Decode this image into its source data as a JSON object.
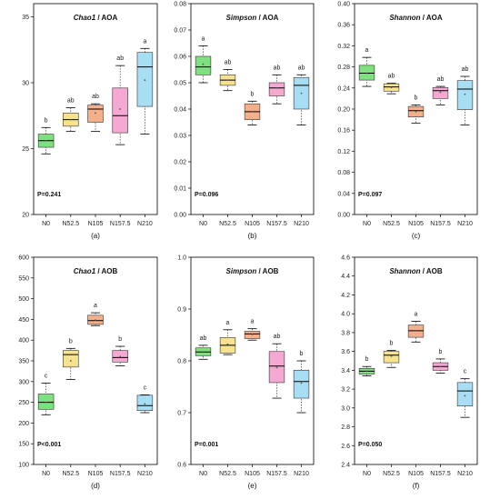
{
  "chart_data": [
    {
      "type": "box",
      "panel_label": "(a)",
      "title_italic": "Chao1",
      "title_rest": " / AOA",
      "ylim": [
        20,
        36
      ],
      "yticks": [
        20,
        25,
        30,
        35
      ],
      "categories": [
        "N0",
        "N52.5",
        "N105",
        "N157.5",
        "N210"
      ],
      "colors": [
        "#7fe07f",
        "#f7e38f",
        "#f4b08a",
        "#f4a8d2",
        "#a8def3"
      ],
      "boxes": [
        {
          "whislo": 24.6,
          "q1": 25.1,
          "med": 25.6,
          "q3": 26.1,
          "whishi": 26.6,
          "mean": 25.6,
          "letter": "b"
        },
        {
          "whislo": 26.3,
          "q1": 26.7,
          "med": 27.2,
          "q3": 27.7,
          "whishi": 28.1,
          "mean": 27.2,
          "letter": "ab"
        },
        {
          "whislo": 26.3,
          "q1": 27.0,
          "med": 28.0,
          "q3": 28.3,
          "whishi": 28.4,
          "mean": 27.7,
          "letter": "ab"
        },
        {
          "whislo": 25.3,
          "q1": 26.2,
          "med": 27.5,
          "q3": 29.6,
          "whishi": 31.3,
          "mean": 28.0,
          "letter": "ab"
        },
        {
          "whislo": 26.1,
          "q1": 28.2,
          "med": 31.2,
          "q3": 32.3,
          "whishi": 32.6,
          "mean": 30.2,
          "letter": "a"
        }
      ],
      "pvalue": "P=0.241"
    },
    {
      "type": "box",
      "panel_label": "(b)",
      "title_italic": "Simpson",
      "title_rest": " / AOA",
      "ylim": [
        0,
        0.08
      ],
      "yticks": [
        0,
        0.01,
        0.02,
        0.03,
        0.04,
        0.05,
        0.06,
        0.07,
        0.08
      ],
      "ytick_labels": [
        "0.00",
        "0.01",
        "0.02",
        "0.03",
        "0.04",
        "0.05",
        "0.06",
        "0.07",
        "0.08"
      ],
      "categories": [
        "N0",
        "N52.5",
        "N105",
        "N157.5",
        "N210"
      ],
      "colors": [
        "#7fe07f",
        "#f7e38f",
        "#f4b08a",
        "#f4a8d2",
        "#a8def3"
      ],
      "boxes": [
        {
          "whislo": 0.05,
          "q1": 0.053,
          "med": 0.056,
          "q3": 0.06,
          "whishi": 0.064,
          "mean": 0.057,
          "letter": "a"
        },
        {
          "whislo": 0.047,
          "q1": 0.049,
          "med": 0.051,
          "q3": 0.053,
          "whishi": 0.055,
          "mean": 0.051,
          "letter": "ab"
        },
        {
          "whislo": 0.034,
          "q1": 0.036,
          "med": 0.039,
          "q3": 0.042,
          "whishi": 0.043,
          "mean": 0.039,
          "letter": "b"
        },
        {
          "whislo": 0.042,
          "q1": 0.045,
          "med": 0.048,
          "q3": 0.05,
          "whishi": 0.053,
          "mean": 0.048,
          "letter": "ab"
        },
        {
          "whislo": 0.034,
          "q1": 0.04,
          "med": 0.049,
          "q3": 0.052,
          "whishi": 0.053,
          "mean": 0.046,
          "letter": "ab"
        }
      ],
      "pvalue": "P=0.096"
    },
    {
      "type": "box",
      "panel_label": "(c)",
      "title_italic": "Shannon",
      "title_rest": " / AOA",
      "ylim": [
        0,
        0.4
      ],
      "yticks": [
        0,
        0.04,
        0.08,
        0.12,
        0.16,
        0.2,
        0.24,
        0.28,
        0.32,
        0.36,
        0.4
      ],
      "ytick_labels": [
        "0.00",
        "0.04",
        "0.08",
        "0.12",
        "0.16",
        "0.20",
        "0.24",
        "0.28",
        "0.32",
        "0.36",
        "0.40"
      ],
      "categories": [
        "N0",
        "N52.5",
        "N105",
        "N157.5",
        "N210"
      ],
      "colors": [
        "#7fe07f",
        "#f7e38f",
        "#f4b08a",
        "#f4a8d2",
        "#a8def3"
      ],
      "boxes": [
        {
          "whislo": 0.243,
          "q1": 0.255,
          "med": 0.268,
          "q3": 0.283,
          "whishi": 0.298,
          "mean": 0.268,
          "letter": "a"
        },
        {
          "whislo": 0.229,
          "q1": 0.234,
          "med": 0.242,
          "q3": 0.248,
          "whishi": 0.249,
          "mean": 0.241,
          "letter": "ab"
        },
        {
          "whislo": 0.173,
          "q1": 0.185,
          "med": 0.197,
          "q3": 0.205,
          "whishi": 0.208,
          "mean": 0.195,
          "letter": "b"
        },
        {
          "whislo": 0.208,
          "q1": 0.22,
          "med": 0.235,
          "q3": 0.241,
          "whishi": 0.243,
          "mean": 0.232,
          "letter": "ab"
        },
        {
          "whislo": 0.17,
          "q1": 0.199,
          "med": 0.238,
          "q3": 0.254,
          "whishi": 0.262,
          "mean": 0.228,
          "letter": "ab"
        }
      ],
      "pvalue": "P=0.097"
    },
    {
      "type": "box",
      "panel_label": "(d)",
      "title_italic": "Chao1",
      "title_rest": " / AOB",
      "ylim": [
        100,
        600
      ],
      "yticks": [
        100,
        150,
        200,
        250,
        300,
        350,
        400,
        450,
        500,
        550,
        600
      ],
      "categories": [
        "N0",
        "N52.5",
        "N105",
        "N157.5",
        "N210"
      ],
      "colors": [
        "#7fe07f",
        "#f7e38f",
        "#f4b08a",
        "#f4a8d2",
        "#a8def3"
      ],
      "boxes": [
        {
          "whislo": 220,
          "q1": 233,
          "med": 250,
          "q3": 270,
          "whishi": 296,
          "mean": 250,
          "letter": "c"
        },
        {
          "whislo": 305,
          "q1": 335,
          "med": 365,
          "q3": 375,
          "whishi": 380,
          "mean": 350,
          "letter": "b"
        },
        {
          "whislo": 435,
          "q1": 438,
          "med": 447,
          "q3": 460,
          "whishi": 466,
          "mean": 448,
          "letter": "a"
        },
        {
          "whislo": 338,
          "q1": 347,
          "med": 358,
          "q3": 375,
          "whishi": 385,
          "mean": 360,
          "letter": "b"
        },
        {
          "whislo": 225,
          "q1": 230,
          "med": 242,
          "q3": 267,
          "whishi": 268,
          "mean": 246,
          "letter": "c"
        }
      ],
      "pvalue": "P<0.001"
    },
    {
      "type": "box",
      "panel_label": "(e)",
      "title_italic": "Simpson",
      "title_rest": " / AOB",
      "ylim": [
        0.6,
        1.0
      ],
      "yticks": [
        0.6,
        0.7,
        0.8,
        0.9,
        1.0
      ],
      "ytick_labels": [
        "0.6",
        "0.7",
        "0.8",
        "0.9",
        "1.0"
      ],
      "categories": [
        "N0",
        "N52.5",
        "N105",
        "N157.5",
        "N210"
      ],
      "colors": [
        "#7fe07f",
        "#f7e38f",
        "#f4b08a",
        "#f4a8d2",
        "#a8def3"
      ],
      "boxes": [
        {
          "whislo": 0.803,
          "q1": 0.81,
          "med": 0.817,
          "q3": 0.825,
          "whishi": 0.83,
          "mean": 0.817,
          "letter": "ab"
        },
        {
          "whislo": 0.812,
          "q1": 0.815,
          "med": 0.83,
          "q3": 0.845,
          "whishi": 0.86,
          "mean": 0.832,
          "letter": "a"
        },
        {
          "whislo": 0.84,
          "q1": 0.843,
          "med": 0.852,
          "q3": 0.857,
          "whishi": 0.862,
          "mean": 0.851,
          "letter": "a"
        },
        {
          "whislo": 0.728,
          "q1": 0.758,
          "med": 0.79,
          "q3": 0.818,
          "whishi": 0.833,
          "mean": 0.787,
          "letter": "ab"
        },
        {
          "whislo": 0.7,
          "q1": 0.728,
          "med": 0.76,
          "q3": 0.782,
          "whishi": 0.8,
          "mean": 0.757,
          "letter": "b"
        }
      ],
      "pvalue": "P=0.001"
    },
    {
      "type": "box",
      "panel_label": "(f)",
      "title_italic": "Shannon",
      "title_rest": " / AOB",
      "ylim": [
        2.4,
        4.6
      ],
      "yticks": [
        2.4,
        2.6,
        2.8,
        3.0,
        3.2,
        3.4,
        3.6,
        3.8,
        4.0,
        4.2,
        4.4,
        4.6
      ],
      "ytick_labels": [
        "2.4",
        "2.6",
        "2.8",
        "3.0",
        "3.2",
        "3.4",
        "3.6",
        "3.8",
        "4.0",
        "4.2",
        "4.4",
        "4.6"
      ],
      "categories": [
        "N0",
        "N52.5",
        "N105",
        "N157.5",
        "N210"
      ],
      "colors": [
        "#7fe07f",
        "#f7e38f",
        "#f4b08a",
        "#f4a8d2",
        "#a8def3"
      ],
      "boxes": [
        {
          "whislo": 3.34,
          "q1": 3.36,
          "med": 3.39,
          "q3": 3.42,
          "whishi": 3.44,
          "mean": 3.39,
          "letter": "b"
        },
        {
          "whislo": 3.43,
          "q1": 3.48,
          "med": 3.56,
          "q3": 3.6,
          "whishi": 3.61,
          "mean": 3.55,
          "letter": "b"
        },
        {
          "whislo": 3.7,
          "q1": 3.75,
          "med": 3.82,
          "q3": 3.88,
          "whishi": 3.92,
          "mean": 3.82,
          "letter": "a"
        },
        {
          "whislo": 3.37,
          "q1": 3.4,
          "med": 3.44,
          "q3": 3.48,
          "whishi": 3.52,
          "mean": 3.44,
          "letter": "b"
        },
        {
          "whislo": 2.9,
          "q1": 3.02,
          "med": 3.18,
          "q3": 3.27,
          "whishi": 3.31,
          "mean": 3.13,
          "letter": "c"
        }
      ],
      "pvalue": "P=0.050"
    }
  ]
}
